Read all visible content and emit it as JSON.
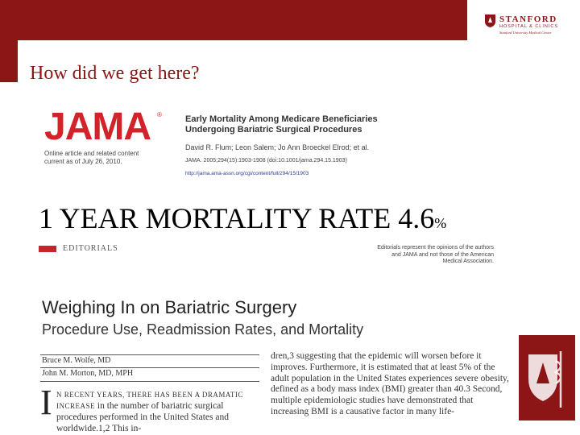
{
  "header": {
    "brand_name": "STANFORD",
    "brand_sub": "HOSPITAL & CLINICS",
    "brand_tagline": "Stanford University Medical Center",
    "accent_color": "#8c1515"
  },
  "slide": {
    "title": "How did we get here?"
  },
  "jama": {
    "logo_text": "JAMA",
    "logo_reg": "®",
    "online_note": "Online article and related content current as of July 26, 2010.",
    "article_title_line1": "Early Mortality Among Medicare Beneficiaries",
    "article_title_line2": "Undergoing Bariatric Surgical Procedures",
    "authors": "David R. Flum; Leon Salem; Jo Ann Broeckel Elrod; et al.",
    "citation": "JAMA. 2005;294(15):1903-1908 (doi:10.1001/jama.294.15.1903)",
    "url": "http://jama.ama-assn.org/cgi/content/full/294/15/1903"
  },
  "mortality": {
    "label": "1 YEAR MORTALITY RATE 4.6",
    "unit": "%"
  },
  "editorial": {
    "section": "EDITORIALS",
    "note": "Editorials represent the opinions of the authors and JAMA and not those of the American Medical Association.",
    "title": "Weighing In on Bariatric Surgery",
    "subtitle": "Procedure Use, Readmission Rates, and Mortality",
    "authors": [
      "Bruce M. Wolfe, MD",
      "John M. Morton, MD, MPH"
    ],
    "dropcap": "I",
    "lead_caps": "N RECENT YEARS, THERE HAS BEEN A DRAMATIC INCREASE",
    "lead_body": "in the number of bariatric surgical procedures performed in the United States and worldwide.1,2 This in-",
    "right_column": "dren,3 suggesting that the epidemic will worsen before it improves. Furthermore, it is estimated that at least 5% of the adult population in the United States experiences severe obesity, defined as a body mass index (BMI) greater than 40.3 Second, multiple epidemiologic studies have demonstrated that increasing BMI is a causative factor in many life-"
  }
}
